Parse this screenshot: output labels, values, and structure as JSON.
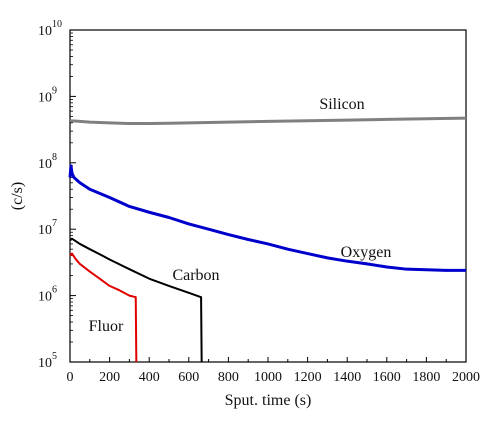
{
  "chart_data": {
    "type": "line",
    "xlabel": "Sput. time (s)",
    "ylabel": "(c/s)",
    "xlim": [
      0,
      2000
    ],
    "ylim": [
      100000,
      10000000000
    ],
    "yscale": "log",
    "grid": false,
    "x_ticks": [
      0,
      200,
      400,
      600,
      800,
      1000,
      1200,
      1400,
      1600,
      1800,
      2000
    ],
    "y_ticks": [
      {
        "base": "10",
        "exp": "5",
        "value": 100000
      },
      {
        "base": "10",
        "exp": "6",
        "value": 1000000
      },
      {
        "base": "10",
        "exp": "7",
        "value": 10000000
      },
      {
        "base": "10",
        "exp": "8",
        "value": 100000000
      },
      {
        "base": "10",
        "exp": "9",
        "value": 1000000000
      },
      {
        "base": "10",
        "exp": "10",
        "value": 10000000000
      }
    ],
    "series": [
      {
        "name": "Silicon",
        "color": "#808080",
        "x": [
          0,
          50,
          100,
          200,
          300,
          400,
          500,
          600,
          800,
          1000,
          1200,
          1400,
          1600,
          1800,
          2000
        ],
        "y": [
          430000000,
          420000000,
          410000000,
          400000000,
          390000000,
          390000000,
          395000000,
          400000000,
          410000000,
          420000000,
          430000000,
          440000000,
          450000000,
          460000000,
          470000000
        ]
      },
      {
        "name": "Oxygen",
        "color": "#0000cc",
        "x": [
          0,
          5,
          10,
          20,
          50,
          100,
          200,
          300,
          400,
          500,
          600,
          700,
          800,
          900,
          1000,
          1100,
          1200,
          1300,
          1400,
          1500,
          1600,
          1700,
          1800,
          1900,
          2000
        ],
        "y": [
          60000000,
          90000000,
          70000000,
          60000000,
          50000000,
          40000000,
          30000000,
          22000000,
          18000000,
          15000000,
          12000000,
          10000000,
          8300000,
          7000000,
          6000000,
          5000000,
          4300000,
          3700000,
          3300000,
          3000000,
          2700000,
          2500000,
          2450000,
          2400000,
          2400000
        ]
      },
      {
        "name": "Carbon",
        "color": "#000000",
        "x": [
          0,
          10,
          50,
          100,
          150,
          200,
          300,
          400,
          500,
          600,
          660,
          662,
          665
        ],
        "y": [
          6800000,
          7200000,
          6000000,
          5000000,
          4200000,
          3500000,
          2500000,
          1800000,
          1400000,
          1100000,
          950000,
          950000,
          100000
        ]
      },
      {
        "name": "Fluor",
        "color": "#e00000",
        "x": [
          0,
          10,
          30,
          50,
          100,
          150,
          200,
          250,
          300,
          330,
          332,
          335
        ],
        "y": [
          4000000,
          4300000,
          3500000,
          3000000,
          2300000,
          1800000,
          1400000,
          1200000,
          1000000,
          950000,
          950000,
          100000
        ]
      }
    ]
  }
}
